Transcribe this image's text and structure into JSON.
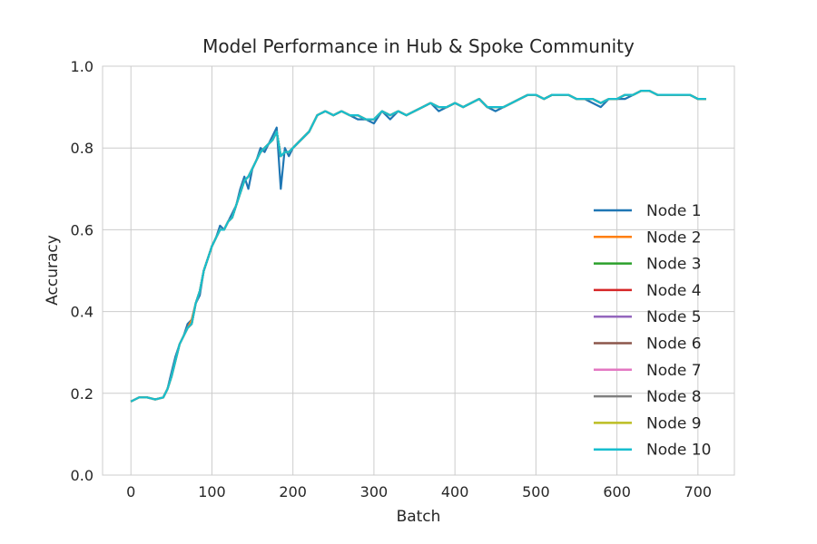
{
  "chart_data": {
    "type": "line",
    "title": "Model Performance in Hub & Spoke Community",
    "xlabel": "Batch",
    "ylabel": "Accuracy",
    "xlim": [
      -35,
      745
    ],
    "ylim": [
      0.0,
      1.0
    ],
    "xticks": [
      0,
      100,
      200,
      300,
      400,
      500,
      600,
      700
    ],
    "yticks": [
      0.0,
      0.2,
      0.4,
      0.6,
      0.8,
      1.0
    ],
    "xtick_labels": [
      "0",
      "100",
      "200",
      "300",
      "400",
      "500",
      "600",
      "700"
    ],
    "ytick_labels": [
      "0.0",
      "0.2",
      "0.4",
      "0.6",
      "0.8",
      "1.0"
    ],
    "grid": true,
    "legend_position": "center-right",
    "x": [
      0,
      10,
      20,
      30,
      40,
      45,
      50,
      55,
      60,
      65,
      70,
      75,
      80,
      85,
      90,
      95,
      100,
      105,
      110,
      115,
      120,
      125,
      130,
      135,
      140,
      145,
      150,
      155,
      160,
      165,
      170,
      175,
      180,
      185,
      190,
      195,
      200,
      210,
      220,
      230,
      240,
      250,
      260,
      270,
      280,
      290,
      300,
      310,
      320,
      330,
      340,
      350,
      360,
      370,
      380,
      390,
      400,
      410,
      420,
      430,
      440,
      450,
      460,
      470,
      480,
      490,
      500,
      510,
      520,
      530,
      540,
      550,
      560,
      570,
      580,
      590,
      600,
      610,
      620,
      630,
      640,
      650,
      660,
      670,
      680,
      690,
      700,
      710
    ],
    "series": [
      {
        "name": "Node 1",
        "color": "#1f77b4",
        "values": [
          0.18,
          0.19,
          0.19,
          0.185,
          0.19,
          0.21,
          0.25,
          0.29,
          0.32,
          0.34,
          0.37,
          0.38,
          0.42,
          0.44,
          0.5,
          0.53,
          0.56,
          0.58,
          0.61,
          0.6,
          0.62,
          0.64,
          0.66,
          0.7,
          0.73,
          0.7,
          0.75,
          0.77,
          0.8,
          0.79,
          0.81,
          0.83,
          0.85,
          0.7,
          0.8,
          0.78,
          0.8,
          0.82,
          0.84,
          0.88,
          0.89,
          0.88,
          0.89,
          0.88,
          0.87,
          0.87,
          0.86,
          0.89,
          0.87,
          0.89,
          0.88,
          0.89,
          0.9,
          0.91,
          0.89,
          0.9,
          0.91,
          0.9,
          0.91,
          0.92,
          0.9,
          0.89,
          0.9,
          0.91,
          0.92,
          0.93,
          0.93,
          0.92,
          0.93,
          0.93,
          0.93,
          0.92,
          0.92,
          0.91,
          0.9,
          0.92,
          0.92,
          0.92,
          0.93,
          0.94,
          0.94,
          0.93,
          0.93,
          0.93,
          0.93,
          0.93,
          0.92,
          0.92
        ]
      },
      {
        "name": "Node 2",
        "color": "#ff7f0e",
        "values": [
          0.18,
          0.19,
          0.19,
          0.185,
          0.19,
          0.21,
          0.24,
          0.28,
          0.32,
          0.34,
          0.36,
          0.38,
          0.42,
          0.45,
          0.5,
          0.53,
          0.56,
          0.58,
          0.6,
          0.6,
          0.62,
          0.63,
          0.66,
          0.69,
          0.72,
          0.73,
          0.75,
          0.77,
          0.79,
          0.8,
          0.81,
          0.82,
          0.84,
          0.78,
          0.79,
          0.79,
          0.8,
          0.82,
          0.84,
          0.88,
          0.89,
          0.88,
          0.89,
          0.88,
          0.88,
          0.87,
          0.87,
          0.89,
          0.88,
          0.89,
          0.88,
          0.89,
          0.9,
          0.91,
          0.9,
          0.9,
          0.91,
          0.9,
          0.91,
          0.92,
          0.9,
          0.9,
          0.9,
          0.91,
          0.92,
          0.93,
          0.93,
          0.92,
          0.93,
          0.93,
          0.93,
          0.92,
          0.92,
          0.92,
          0.91,
          0.92,
          0.92,
          0.93,
          0.93,
          0.94,
          0.94,
          0.93,
          0.93,
          0.93,
          0.93,
          0.93,
          0.92,
          0.92
        ]
      },
      {
        "name": "Node 3",
        "color": "#2ca02c",
        "values": [
          0.18,
          0.19,
          0.19,
          0.185,
          0.19,
          0.21,
          0.24,
          0.28,
          0.32,
          0.34,
          0.36,
          0.37,
          0.42,
          0.45,
          0.5,
          0.53,
          0.56,
          0.58,
          0.6,
          0.6,
          0.62,
          0.63,
          0.66,
          0.69,
          0.72,
          0.73,
          0.75,
          0.77,
          0.79,
          0.8,
          0.81,
          0.82,
          0.84,
          0.78,
          0.79,
          0.79,
          0.8,
          0.82,
          0.84,
          0.88,
          0.89,
          0.88,
          0.89,
          0.88,
          0.88,
          0.87,
          0.87,
          0.89,
          0.88,
          0.89,
          0.88,
          0.89,
          0.9,
          0.91,
          0.9,
          0.9,
          0.91,
          0.9,
          0.91,
          0.92,
          0.9,
          0.9,
          0.9,
          0.91,
          0.92,
          0.93,
          0.93,
          0.92,
          0.93,
          0.93,
          0.93,
          0.92,
          0.92,
          0.92,
          0.91,
          0.92,
          0.92,
          0.93,
          0.93,
          0.94,
          0.94,
          0.93,
          0.93,
          0.93,
          0.93,
          0.93,
          0.92,
          0.92
        ]
      },
      {
        "name": "Node 4",
        "color": "#d62728",
        "values": [
          0.18,
          0.19,
          0.19,
          0.185,
          0.19,
          0.21,
          0.24,
          0.28,
          0.32,
          0.34,
          0.36,
          0.37,
          0.42,
          0.45,
          0.5,
          0.53,
          0.56,
          0.58,
          0.6,
          0.6,
          0.62,
          0.63,
          0.66,
          0.69,
          0.72,
          0.73,
          0.75,
          0.77,
          0.79,
          0.8,
          0.81,
          0.82,
          0.84,
          0.78,
          0.79,
          0.79,
          0.8,
          0.82,
          0.84,
          0.88,
          0.89,
          0.88,
          0.89,
          0.88,
          0.88,
          0.87,
          0.87,
          0.89,
          0.88,
          0.89,
          0.88,
          0.89,
          0.9,
          0.91,
          0.9,
          0.9,
          0.91,
          0.9,
          0.91,
          0.92,
          0.9,
          0.9,
          0.9,
          0.91,
          0.92,
          0.93,
          0.93,
          0.92,
          0.93,
          0.93,
          0.93,
          0.92,
          0.92,
          0.92,
          0.91,
          0.92,
          0.92,
          0.93,
          0.93,
          0.94,
          0.94,
          0.93,
          0.93,
          0.93,
          0.93,
          0.93,
          0.92,
          0.92
        ]
      },
      {
        "name": "Node 5",
        "color": "#9467bd",
        "values": [
          0.18,
          0.19,
          0.19,
          0.185,
          0.19,
          0.21,
          0.24,
          0.28,
          0.32,
          0.34,
          0.36,
          0.37,
          0.42,
          0.45,
          0.5,
          0.53,
          0.56,
          0.58,
          0.6,
          0.6,
          0.62,
          0.63,
          0.66,
          0.69,
          0.72,
          0.73,
          0.75,
          0.77,
          0.79,
          0.8,
          0.81,
          0.82,
          0.84,
          0.78,
          0.79,
          0.79,
          0.8,
          0.82,
          0.84,
          0.88,
          0.89,
          0.88,
          0.89,
          0.88,
          0.88,
          0.87,
          0.87,
          0.89,
          0.88,
          0.89,
          0.88,
          0.89,
          0.9,
          0.91,
          0.9,
          0.9,
          0.91,
          0.9,
          0.91,
          0.92,
          0.9,
          0.9,
          0.9,
          0.91,
          0.92,
          0.93,
          0.93,
          0.92,
          0.93,
          0.93,
          0.93,
          0.92,
          0.92,
          0.92,
          0.91,
          0.92,
          0.92,
          0.93,
          0.93,
          0.94,
          0.94,
          0.93,
          0.93,
          0.93,
          0.93,
          0.93,
          0.92,
          0.92
        ]
      },
      {
        "name": "Node 6",
        "color": "#8c564b",
        "values": [
          0.18,
          0.19,
          0.19,
          0.185,
          0.19,
          0.21,
          0.24,
          0.28,
          0.32,
          0.34,
          0.36,
          0.37,
          0.42,
          0.45,
          0.5,
          0.53,
          0.56,
          0.58,
          0.6,
          0.6,
          0.62,
          0.63,
          0.66,
          0.69,
          0.72,
          0.73,
          0.75,
          0.77,
          0.79,
          0.8,
          0.81,
          0.82,
          0.84,
          0.78,
          0.79,
          0.79,
          0.8,
          0.82,
          0.84,
          0.88,
          0.89,
          0.88,
          0.89,
          0.88,
          0.88,
          0.87,
          0.87,
          0.89,
          0.88,
          0.89,
          0.88,
          0.89,
          0.9,
          0.91,
          0.9,
          0.9,
          0.91,
          0.9,
          0.91,
          0.92,
          0.9,
          0.9,
          0.9,
          0.91,
          0.92,
          0.93,
          0.93,
          0.92,
          0.93,
          0.93,
          0.93,
          0.92,
          0.92,
          0.92,
          0.91,
          0.92,
          0.92,
          0.93,
          0.93,
          0.94,
          0.94,
          0.93,
          0.93,
          0.93,
          0.93,
          0.93,
          0.92,
          0.92
        ]
      },
      {
        "name": "Node 7",
        "color": "#e377c2",
        "values": [
          0.18,
          0.19,
          0.19,
          0.185,
          0.19,
          0.21,
          0.24,
          0.28,
          0.32,
          0.34,
          0.36,
          0.37,
          0.42,
          0.45,
          0.5,
          0.53,
          0.56,
          0.58,
          0.6,
          0.6,
          0.62,
          0.63,
          0.66,
          0.69,
          0.72,
          0.73,
          0.75,
          0.77,
          0.79,
          0.8,
          0.81,
          0.82,
          0.84,
          0.78,
          0.79,
          0.79,
          0.8,
          0.82,
          0.84,
          0.88,
          0.89,
          0.88,
          0.89,
          0.88,
          0.88,
          0.87,
          0.87,
          0.89,
          0.88,
          0.89,
          0.88,
          0.89,
          0.9,
          0.91,
          0.9,
          0.9,
          0.91,
          0.9,
          0.91,
          0.92,
          0.9,
          0.9,
          0.9,
          0.91,
          0.92,
          0.93,
          0.93,
          0.92,
          0.93,
          0.93,
          0.93,
          0.92,
          0.92,
          0.92,
          0.91,
          0.92,
          0.92,
          0.93,
          0.93,
          0.94,
          0.94,
          0.93,
          0.93,
          0.93,
          0.93,
          0.93,
          0.92,
          0.92
        ]
      },
      {
        "name": "Node 8",
        "color": "#7f7f7f",
        "values": [
          0.18,
          0.19,
          0.19,
          0.185,
          0.19,
          0.21,
          0.24,
          0.28,
          0.32,
          0.34,
          0.36,
          0.37,
          0.42,
          0.45,
          0.5,
          0.53,
          0.56,
          0.58,
          0.6,
          0.6,
          0.62,
          0.63,
          0.66,
          0.69,
          0.72,
          0.73,
          0.75,
          0.77,
          0.79,
          0.8,
          0.81,
          0.82,
          0.84,
          0.78,
          0.79,
          0.79,
          0.8,
          0.82,
          0.84,
          0.88,
          0.89,
          0.88,
          0.89,
          0.88,
          0.88,
          0.87,
          0.87,
          0.89,
          0.88,
          0.89,
          0.88,
          0.89,
          0.9,
          0.91,
          0.9,
          0.9,
          0.91,
          0.9,
          0.91,
          0.92,
          0.9,
          0.9,
          0.9,
          0.91,
          0.92,
          0.93,
          0.93,
          0.92,
          0.93,
          0.93,
          0.93,
          0.92,
          0.92,
          0.92,
          0.91,
          0.92,
          0.92,
          0.93,
          0.93,
          0.94,
          0.94,
          0.93,
          0.93,
          0.93,
          0.93,
          0.93,
          0.92,
          0.92
        ]
      },
      {
        "name": "Node 9",
        "color": "#bcbd22",
        "values": [
          0.18,
          0.19,
          0.19,
          0.185,
          0.19,
          0.21,
          0.24,
          0.28,
          0.32,
          0.34,
          0.36,
          0.37,
          0.42,
          0.45,
          0.5,
          0.53,
          0.56,
          0.58,
          0.6,
          0.6,
          0.62,
          0.63,
          0.66,
          0.69,
          0.72,
          0.73,
          0.75,
          0.77,
          0.79,
          0.8,
          0.81,
          0.82,
          0.84,
          0.78,
          0.79,
          0.79,
          0.8,
          0.82,
          0.84,
          0.88,
          0.89,
          0.88,
          0.89,
          0.88,
          0.88,
          0.87,
          0.87,
          0.89,
          0.88,
          0.89,
          0.88,
          0.89,
          0.9,
          0.91,
          0.9,
          0.9,
          0.91,
          0.9,
          0.91,
          0.92,
          0.9,
          0.9,
          0.9,
          0.91,
          0.92,
          0.93,
          0.93,
          0.92,
          0.93,
          0.93,
          0.93,
          0.92,
          0.92,
          0.92,
          0.91,
          0.92,
          0.92,
          0.93,
          0.93,
          0.94,
          0.94,
          0.93,
          0.93,
          0.93,
          0.93,
          0.93,
          0.92,
          0.92
        ]
      },
      {
        "name": "Node 10",
        "color": "#17becf",
        "values": [
          0.18,
          0.19,
          0.19,
          0.185,
          0.19,
          0.21,
          0.24,
          0.28,
          0.32,
          0.34,
          0.36,
          0.37,
          0.42,
          0.45,
          0.5,
          0.53,
          0.56,
          0.58,
          0.6,
          0.6,
          0.62,
          0.63,
          0.66,
          0.69,
          0.72,
          0.73,
          0.75,
          0.77,
          0.79,
          0.8,
          0.81,
          0.82,
          0.84,
          0.78,
          0.79,
          0.79,
          0.8,
          0.82,
          0.84,
          0.88,
          0.89,
          0.88,
          0.89,
          0.88,
          0.88,
          0.87,
          0.87,
          0.89,
          0.88,
          0.89,
          0.88,
          0.89,
          0.9,
          0.91,
          0.9,
          0.9,
          0.91,
          0.9,
          0.91,
          0.92,
          0.9,
          0.9,
          0.9,
          0.91,
          0.92,
          0.93,
          0.93,
          0.92,
          0.93,
          0.93,
          0.93,
          0.92,
          0.92,
          0.92,
          0.91,
          0.92,
          0.92,
          0.93,
          0.93,
          0.94,
          0.94,
          0.93,
          0.93,
          0.93,
          0.93,
          0.93,
          0.92,
          0.92
        ]
      }
    ]
  }
}
